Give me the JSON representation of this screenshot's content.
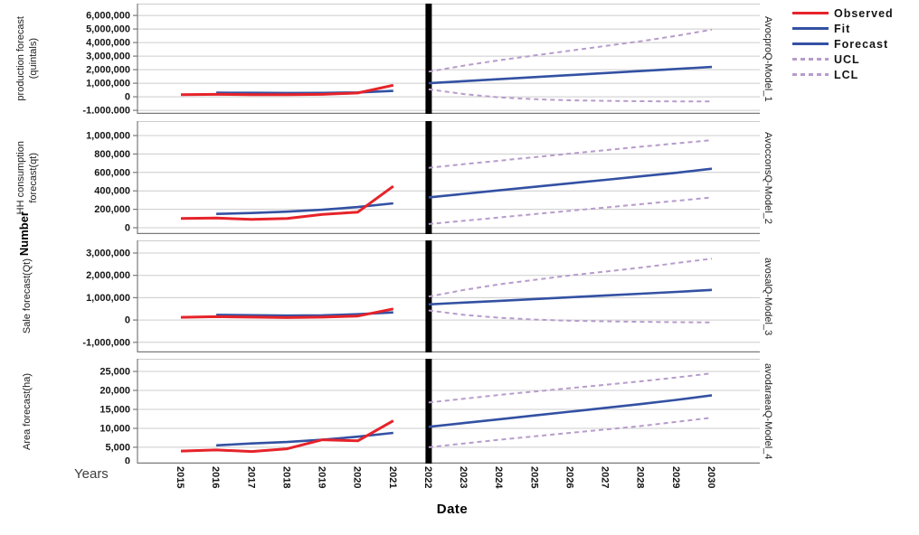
{
  "y_axis": {
    "title": "Number"
  },
  "x_axis": {
    "title": "Date",
    "side_label": "Years",
    "years": [
      "2015",
      "2016",
      "2017",
      "2018",
      "2019",
      "2020",
      "2021",
      "2022",
      "2023",
      "2024",
      "2025",
      "2026",
      "2027",
      "2028",
      "2029",
      "2030"
    ]
  },
  "legend": {
    "items": [
      {
        "label": "Observed",
        "color": "#e6232a",
        "dash": false
      },
      {
        "label": "Fit",
        "color": "#3351a3",
        "dash": false
      },
      {
        "label": "Forecast",
        "color": "#3351a3",
        "dash": false
      },
      {
        "label": "UCL",
        "color": "#b79ccb",
        "dash": true
      },
      {
        "label": "LCL",
        "color": "#b79ccb",
        "dash": true
      }
    ]
  },
  "colors": {
    "observed": "#e6232a",
    "fit": "#3351a3",
    "interval": "#b79ccb",
    "grid": "#cccccc",
    "axis": "#7a7a7a",
    "forecast_divider": "#000000"
  },
  "chart_data": [
    {
      "type": "line",
      "title_lines": [
        "production forecast",
        "(quintals)"
      ],
      "right_label": "AvocproQ-Model_1",
      "ylim": [
        -1263000,
        6870000
      ],
      "forecast_start": 2022,
      "ticks": [
        {
          "v": 6000000,
          "label": "6,000,000"
        },
        {
          "v": 5000000,
          "label": "5,000,000"
        },
        {
          "v": 4000000,
          "label": "4,000,000"
        },
        {
          "v": 3000000,
          "label": "3,000,000"
        },
        {
          "v": 2000000,
          "label": "2,000,000"
        },
        {
          "v": 1000000,
          "label": "1,000,000"
        },
        {
          "v": 0,
          "label": "0"
        },
        {
          "v": -1000000,
          "label": "-1,000,000"
        }
      ],
      "series": [
        {
          "name": "Observed",
          "color": "#e6232a",
          "width": 3,
          "dash": false,
          "start_year": 2015,
          "values": [
            150000,
            180000,
            160000,
            150000,
            180000,
            280000,
            850000
          ]
        },
        {
          "name": "Fit",
          "color": "#3351a3",
          "width": 2.6,
          "dash": false,
          "start_year": 2016,
          "values": [
            300000,
            290000,
            280000,
            285000,
            320000,
            430000
          ]
        },
        {
          "name": "Forecast",
          "color": "#3351a3",
          "width": 2.6,
          "dash": false,
          "start_year": 2022,
          "values": [
            1000000,
            1150000,
            1300000,
            1450000,
            1600000,
            1750000,
            1900000,
            2050000,
            2200000
          ]
        },
        {
          "name": "UCL",
          "color": "#b79ccb",
          "width": 2,
          "dash": true,
          "start_year": 2022,
          "values": [
            1850000,
            2300000,
            2700000,
            3050000,
            3400000,
            3750000,
            4100000,
            4500000,
            4950000
          ]
        },
        {
          "name": "LCL",
          "color": "#b79ccb",
          "width": 2,
          "dash": true,
          "start_year": 2022,
          "values": [
            550000,
            200000,
            -50000,
            -180000,
            -260000,
            -300000,
            -330000,
            -345000,
            -350000
          ]
        }
      ]
    },
    {
      "type": "line",
      "title_lines": [
        "HH consumption",
        "forecast(qt)"
      ],
      "right_label": "AvocconsQ-Model_2",
      "ylim": [
        -68500,
        1157000
      ],
      "forecast_start": 2022,
      "ticks": [
        {
          "v": 1000000,
          "label": "1,000,000"
        },
        {
          "v": 800000,
          "label": "800,000"
        },
        {
          "v": 600000,
          "label": "600,000"
        },
        {
          "v": 400000,
          "label": "400,000"
        },
        {
          "v": 200000,
          "label": "200,000"
        },
        {
          "v": 0,
          "label": "0"
        }
      ],
      "series": [
        {
          "name": "Observed",
          "color": "#e6232a",
          "width": 3,
          "dash": false,
          "start_year": 2015,
          "values": [
            100000,
            105000,
            90000,
            100000,
            145000,
            170000,
            450000
          ]
        },
        {
          "name": "Fit",
          "color": "#3351a3",
          "width": 2.6,
          "dash": false,
          "start_year": 2016,
          "values": [
            150000,
            160000,
            175000,
            195000,
            225000,
            265000
          ]
        },
        {
          "name": "Forecast",
          "color": "#3351a3",
          "width": 2.6,
          "dash": false,
          "start_year": 2022,
          "values": [
            330000,
            368000,
            406000,
            444000,
            482000,
            520000,
            558000,
            596000,
            640000
          ]
        },
        {
          "name": "UCL",
          "color": "#b79ccb",
          "width": 2,
          "dash": true,
          "start_year": 2022,
          "values": [
            650000,
            690000,
            728000,
            766000,
            804000,
            842000,
            880000,
            915000,
            950000
          ]
        },
        {
          "name": "LCL",
          "color": "#b79ccb",
          "width": 2,
          "dash": true,
          "start_year": 2022,
          "values": [
            40000,
            76000,
            112000,
            148000,
            184000,
            220000,
            256000,
            292000,
            330000
          ]
        }
      ]
    },
    {
      "type": "line",
      "title_lines": [
        "Sale forecast(Qt)"
      ],
      "right_label": "avosalQ-Model_3",
      "ylim": [
        -1453000,
        3567000
      ],
      "forecast_start": 2022,
      "ticks": [
        {
          "v": 3000000,
          "label": "3,000,000"
        },
        {
          "v": 2000000,
          "label": "2,000,000"
        },
        {
          "v": 1000000,
          "label": "1,000,000"
        },
        {
          "v": 0,
          "label": "0"
        },
        {
          "v": -1000000,
          "label": "-1,000,000"
        }
      ],
      "series": [
        {
          "name": "Observed",
          "color": "#e6232a",
          "width": 3,
          "dash": false,
          "start_year": 2015,
          "values": [
            120000,
            150000,
            130000,
            110000,
            130000,
            180000,
            500000
          ]
        },
        {
          "name": "Fit",
          "color": "#3351a3",
          "width": 2.6,
          "dash": false,
          "start_year": 2016,
          "values": [
            230000,
            215000,
            200000,
            210000,
            260000,
            340000
          ]
        },
        {
          "name": "Forecast",
          "color": "#3351a3",
          "width": 2.6,
          "dash": false,
          "start_year": 2022,
          "values": [
            700000,
            780000,
            860000,
            940000,
            1020000,
            1100000,
            1180000,
            1260000,
            1350000
          ]
        },
        {
          "name": "UCL",
          "color": "#b79ccb",
          "width": 2,
          "dash": true,
          "start_year": 2022,
          "values": [
            1050000,
            1350000,
            1600000,
            1800000,
            2000000,
            2170000,
            2350000,
            2550000,
            2750000
          ]
        },
        {
          "name": "LCL",
          "color": "#b79ccb",
          "width": 2,
          "dash": true,
          "start_year": 2022,
          "values": [
            430000,
            230000,
            100000,
            20000,
            -30000,
            -60000,
            -80000,
            -95000,
            -110000
          ]
        }
      ]
    },
    {
      "type": "line",
      "title_lines": [
        "Area forecast(ha)"
      ],
      "right_label": "avodaraeaQ-Model_4",
      "ylim": [
        700,
        28330
      ],
      "forecast_start": 2022,
      "ticks": [
        {
          "v": 25000,
          "label": "25,000"
        },
        {
          "v": 20000,
          "label": "20,000"
        },
        {
          "v": 15000,
          "label": "15,000"
        },
        {
          "v": 10000,
          "label": "10,000"
        },
        {
          "v": 5000,
          "label": "5,000"
        },
        {
          "v": 0,
          "label": "0"
        }
      ],
      "series": [
        {
          "name": "Observed",
          "color": "#e6232a",
          "width": 3,
          "dash": false,
          "start_year": 2015,
          "values": [
            4000,
            4300,
            3900,
            4600,
            7000,
            6700,
            12000
          ]
        },
        {
          "name": "Fit",
          "color": "#3351a3",
          "width": 2.6,
          "dash": false,
          "start_year": 2016,
          "values": [
            5500,
            6000,
            6400,
            7000,
            7800,
            8800
          ]
        },
        {
          "name": "Forecast",
          "color": "#3351a3",
          "width": 2.6,
          "dash": false,
          "start_year": 2022,
          "values": [
            10400,
            11400,
            12400,
            13400,
            14400,
            15400,
            16400,
            17500,
            18700
          ]
        },
        {
          "name": "UCL",
          "color": "#b79ccb",
          "width": 2,
          "dash": true,
          "start_year": 2022,
          "values": [
            16800,
            17800,
            18800,
            19700,
            20600,
            21500,
            22400,
            23400,
            24500
          ]
        },
        {
          "name": "LCL",
          "color": "#b79ccb",
          "width": 2,
          "dash": true,
          "start_year": 2022,
          "values": [
            5000,
            6000,
            7000,
            7900,
            8800,
            9700,
            10600,
            11700,
            12800
          ]
        }
      ]
    }
  ]
}
